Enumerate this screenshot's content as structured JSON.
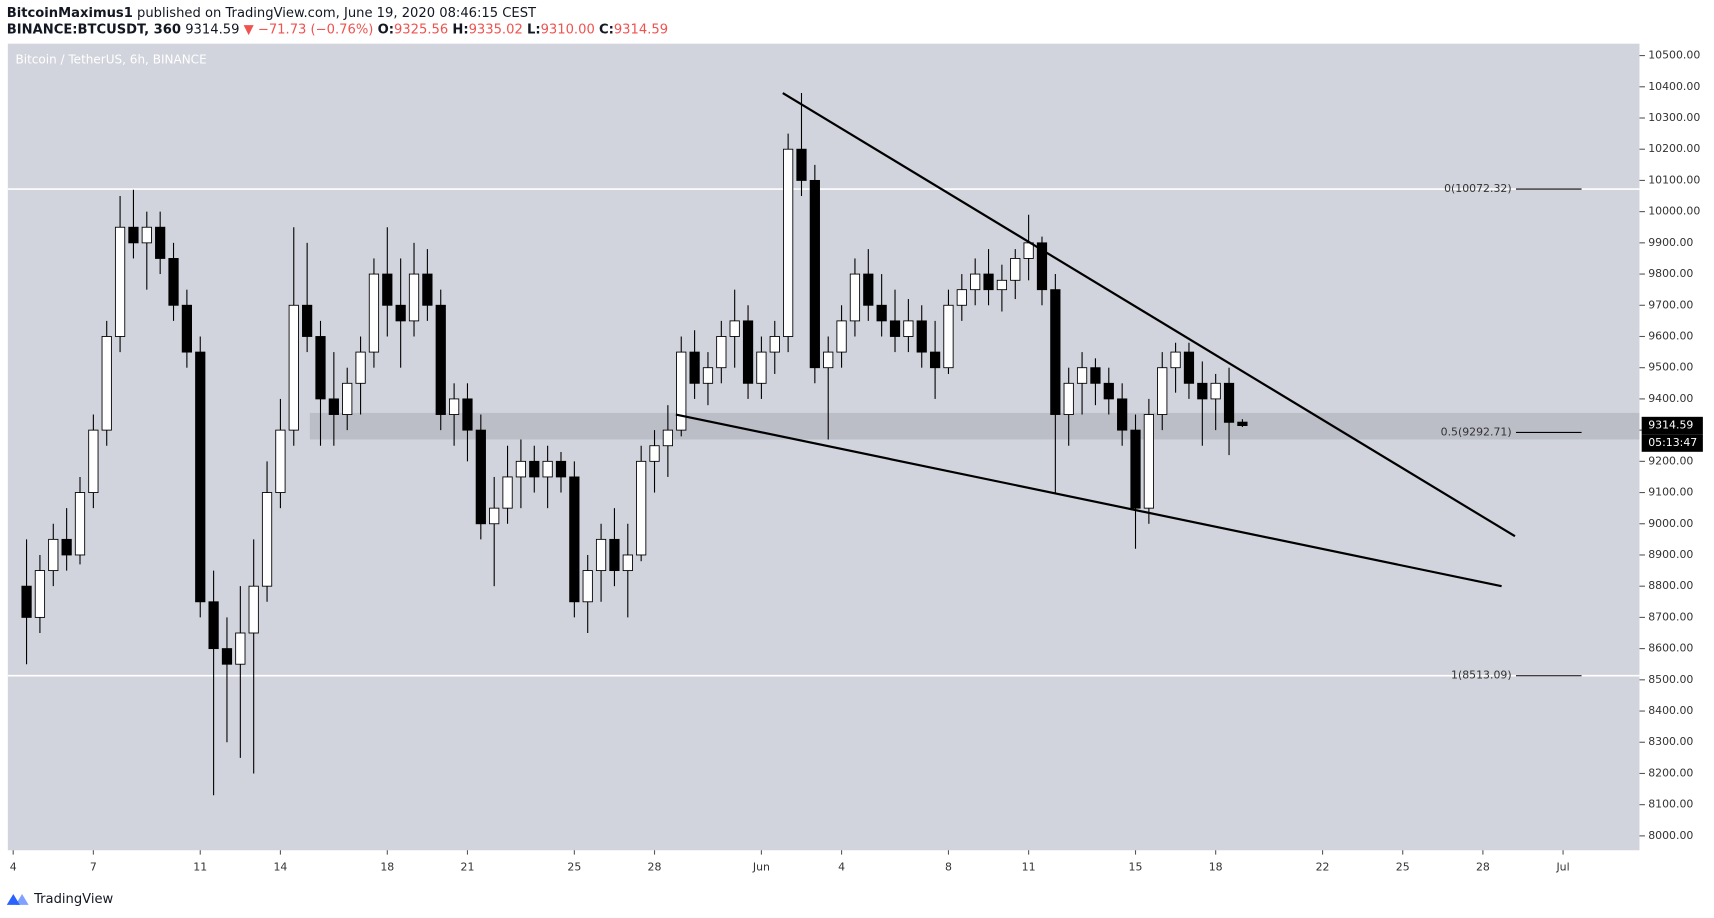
{
  "header": {
    "author": "BitcoinMaximus1",
    "published": "published on TradingView.com, June 19, 2020 08:46:15 CEST",
    "symbol": "BINANCE:BTCUSDT, 360",
    "last": "9314.59",
    "change": "▼ −71.73 (−0.76%)",
    "ohlc": [
      {
        "label": "O:",
        "value": "9325.56"
      },
      {
        "label": "H:",
        "value": "9335.02"
      },
      {
        "label": "L:",
        "value": "9310.00"
      },
      {
        "label": "C:",
        "value": "9314.59"
      }
    ]
  },
  "footer": {
    "brand": "TradingView"
  },
  "chart_data": {
    "type": "candlestick",
    "title": "Bitcoin / TetherUS, 6h, BINANCE",
    "xlim": [
      -0.2,
      60.86
    ],
    "ylim": [
      7954,
      10538
    ],
    "xticks": [
      {
        "value": 0,
        "label": "4"
      },
      {
        "value": 3,
        "label": "7"
      },
      {
        "value": 7,
        "label": "11"
      },
      {
        "value": 10,
        "label": "14"
      },
      {
        "value": 14,
        "label": "18"
      },
      {
        "value": 17,
        "label": "21"
      },
      {
        "value": 21,
        "label": "25"
      },
      {
        "value": 24,
        "label": "28"
      },
      {
        "value": 28,
        "label": "Jun"
      },
      {
        "value": 31,
        "label": "4"
      },
      {
        "value": 35,
        "label": "8"
      },
      {
        "value": 38,
        "label": "11"
      },
      {
        "value": 42,
        "label": "15"
      },
      {
        "value": 45,
        "label": "18"
      },
      {
        "value": 49,
        "label": "22"
      },
      {
        "value": 52,
        "label": "25"
      },
      {
        "value": 55,
        "label": "28"
      },
      {
        "value": 58,
        "label": "Jul"
      }
    ],
    "yticks": [
      {
        "value": 8000,
        "label": "8000.00"
      },
      {
        "value": 8100,
        "label": "8100.00"
      },
      {
        "value": 8200,
        "label": "8200.00"
      },
      {
        "value": 8300,
        "label": "8300.00"
      },
      {
        "value": 8400,
        "label": "8400.00"
      },
      {
        "value": 8500,
        "label": "8500.00"
      },
      {
        "value": 8600,
        "label": "8600.00"
      },
      {
        "value": 8700,
        "label": "8700.00"
      },
      {
        "value": 8800,
        "label": "8800.00"
      },
      {
        "value": 8900,
        "label": "8900.00"
      },
      {
        "value": 9000,
        "label": "9000.00"
      },
      {
        "value": 9100,
        "label": "9100.00"
      },
      {
        "value": 9200,
        "label": "9200.00"
      },
      {
        "value": 9300,
        "label": "9300.00"
      },
      {
        "value": 9400,
        "label": "9400.00"
      },
      {
        "value": 9500,
        "label": "9500.00"
      },
      {
        "value": 9600,
        "label": "9600.00"
      },
      {
        "value": 9700,
        "label": "9700.00"
      },
      {
        "value": 9800,
        "label": "9800.00"
      },
      {
        "value": 9900,
        "label": "9900.00"
      },
      {
        "value": 10000,
        "label": "10000.00"
      },
      {
        "value": 10100,
        "label": "10100.00"
      },
      {
        "value": 10200,
        "label": "10200.00"
      },
      {
        "value": 10300,
        "label": "10300.00"
      },
      {
        "value": 10400,
        "label": "10400.00"
      },
      {
        "value": 10500,
        "label": "10500.00"
      }
    ],
    "x": [
      0.5,
      1,
      1.5,
      2,
      2.5,
      3,
      3.5,
      4,
      4.5,
      5,
      5.5,
      6,
      6.5,
      7,
      7.5,
      8,
      8.5,
      9,
      9.5,
      10,
      10.5,
      11,
      11.5,
      12,
      12.5,
      13,
      13.5,
      14,
      14.5,
      15,
      15.5,
      16,
      16.5,
      17,
      17.5,
      18,
      18.5,
      19,
      19.5,
      20,
      20.5,
      21,
      21.5,
      22,
      22.5,
      23,
      23.5,
      24,
      24.5,
      25,
      25.5,
      26,
      26.5,
      27,
      27.5,
      28,
      28.5,
      29,
      29.5,
      30,
      30.5,
      31,
      31.5,
      32,
      32.5,
      33,
      33.5,
      34,
      34.5,
      35,
      35.5,
      36,
      36.5,
      37,
      37.5,
      38,
      38.5,
      39,
      39.5,
      40,
      40.5,
      41,
      41.5,
      42,
      42.5,
      43,
      43.5,
      44,
      44.5,
      45,
      45.5,
      46
    ],
    "ohlc": [
      [
        8800,
        8950,
        8550,
        8700
      ],
      [
        8700,
        8900,
        8650,
        8850
      ],
      [
        8850,
        9000,
        8800,
        8950
      ],
      [
        8950,
        9050,
        8850,
        8900
      ],
      [
        8900,
        9150,
        8870,
        9100
      ],
      [
        9100,
        9350,
        9050,
        9300
      ],
      [
        9300,
        9650,
        9250,
        9600
      ],
      [
        9600,
        10050,
        9550,
        9950
      ],
      [
        9950,
        10070,
        9850,
        9900
      ],
      [
        9900,
        10000,
        9750,
        9950
      ],
      [
        9950,
        10000,
        9800,
        9850
      ],
      [
        9850,
        9900,
        9650,
        9700
      ],
      [
        9700,
        9750,
        9500,
        9550
      ],
      [
        9550,
        9600,
        8700,
        8750
      ],
      [
        8750,
        8850,
        8130,
        8600
      ],
      [
        8600,
        8700,
        8300,
        8550
      ],
      [
        8550,
        8800,
        8250,
        8650
      ],
      [
        8650,
        8950,
        8200,
        8800
      ],
      [
        8800,
        9200,
        8750,
        9100
      ],
      [
        9100,
        9400,
        9050,
        9300
      ],
      [
        9300,
        9950,
        9250,
        9700
      ],
      [
        9700,
        9900,
        9550,
        9600
      ],
      [
        9600,
        9650,
        9250,
        9400
      ],
      [
        9400,
        9550,
        9250,
        9350
      ],
      [
        9350,
        9500,
        9300,
        9450
      ],
      [
        9450,
        9600,
        9350,
        9550
      ],
      [
        9550,
        9850,
        9500,
        9800
      ],
      [
        9800,
        9950,
        9600,
        9700
      ],
      [
        9700,
        9850,
        9500,
        9650
      ],
      [
        9650,
        9900,
        9600,
        9800
      ],
      [
        9800,
        9880,
        9650,
        9700
      ],
      [
        9700,
        9750,
        9300,
        9350
      ],
      [
        9350,
        9450,
        9250,
        9400
      ],
      [
        9400,
        9450,
        9200,
        9300
      ],
      [
        9300,
        9350,
        8950,
        9000
      ],
      [
        9000,
        9150,
        8800,
        9050
      ],
      [
        9050,
        9250,
        9000,
        9150
      ],
      [
        9150,
        9270,
        9050,
        9200
      ],
      [
        9200,
        9250,
        9100,
        9150
      ],
      [
        9150,
        9250,
        9050,
        9200
      ],
      [
        9200,
        9230,
        9100,
        9150
      ],
      [
        9150,
        9200,
        8700,
        8750
      ],
      [
        8750,
        8900,
        8650,
        8850
      ],
      [
        8850,
        9000,
        8750,
        8950
      ],
      [
        8950,
        9050,
        8800,
        8850
      ],
      [
        8850,
        9000,
        8700,
        8900
      ],
      [
        8900,
        9250,
        8880,
        9200
      ],
      [
        9200,
        9300,
        9100,
        9250
      ],
      [
        9250,
        9380,
        9150,
        9300
      ],
      [
        9300,
        9600,
        9280,
        9550
      ],
      [
        9550,
        9620,
        9400,
        9450
      ],
      [
        9450,
        9550,
        9380,
        9500
      ],
      [
        9500,
        9650,
        9450,
        9600
      ],
      [
        9600,
        9750,
        9500,
        9650
      ],
      [
        9650,
        9700,
        9400,
        9450
      ],
      [
        9450,
        9600,
        9400,
        9550
      ],
      [
        9550,
        9650,
        9480,
        9600
      ],
      [
        9600,
        10250,
        9550,
        10200
      ],
      [
        10200,
        10380,
        10050,
        10100
      ],
      [
        10100,
        10150,
        9450,
        9500
      ],
      [
        9500,
        9600,
        9270,
        9550
      ],
      [
        9550,
        9700,
        9500,
        9650
      ],
      [
        9650,
        9850,
        9600,
        9800
      ],
      [
        9800,
        9880,
        9650,
        9700
      ],
      [
        9700,
        9800,
        9600,
        9650
      ],
      [
        9650,
        9750,
        9550,
        9600
      ],
      [
        9600,
        9720,
        9550,
        9650
      ],
      [
        9650,
        9700,
        9500,
        9550
      ],
      [
        9550,
        9650,
        9400,
        9500
      ],
      [
        9500,
        9750,
        9480,
        9700
      ],
      [
        9700,
        9800,
        9650,
        9750
      ],
      [
        9750,
        9850,
        9700,
        9800
      ],
      [
        9800,
        9880,
        9700,
        9750
      ],
      [
        9750,
        9830,
        9680,
        9780
      ],
      [
        9780,
        9880,
        9720,
        9850
      ],
      [
        9850,
        9990,
        9780,
        9900
      ],
      [
        9900,
        9920,
        9700,
        9750
      ],
      [
        9750,
        9800,
        9100,
        9350
      ],
      [
        9350,
        9500,
        9250,
        9450
      ],
      [
        9450,
        9550,
        9350,
        9500
      ],
      [
        9500,
        9530,
        9380,
        9450
      ],
      [
        9450,
        9500,
        9350,
        9400
      ],
      [
        9400,
        9450,
        9250,
        9300
      ],
      [
        9300,
        9350,
        8920,
        9050
      ],
      [
        9050,
        9400,
        9000,
        9350
      ],
      [
        9350,
        9550,
        9300,
        9500
      ],
      [
        9500,
        9580,
        9420,
        9550
      ],
      [
        9550,
        9580,
        9400,
        9450
      ],
      [
        9450,
        9520,
        9250,
        9400
      ],
      [
        9400,
        9480,
        9300,
        9450
      ],
      [
        9450,
        9500,
        9220,
        9325
      ],
      [
        9325.56,
        9335.02,
        9310,
        9314.59
      ]
    ],
    "levels": [
      {
        "label": "0(10072.32)",
        "value": 10072.32
      },
      {
        "label": "0.5(9292.71)",
        "value": 9292.71
      },
      {
        "label": "1(8513.09)",
        "value": 8513.09
      }
    ],
    "zone": {
      "from": 11.1,
      "y": [
        9270,
        9355
      ]
    },
    "trendlines": [
      {
        "x": [
          28.8,
          56.2
        ],
        "y": [
          10380,
          8960
        ]
      },
      {
        "x": [
          24.8,
          55.7
        ],
        "y": [
          9350,
          8800
        ]
      }
    ],
    "last_price": {
      "value": 9314.59,
      "label": "9314.59",
      "countdown": "05:13:47"
    }
  }
}
